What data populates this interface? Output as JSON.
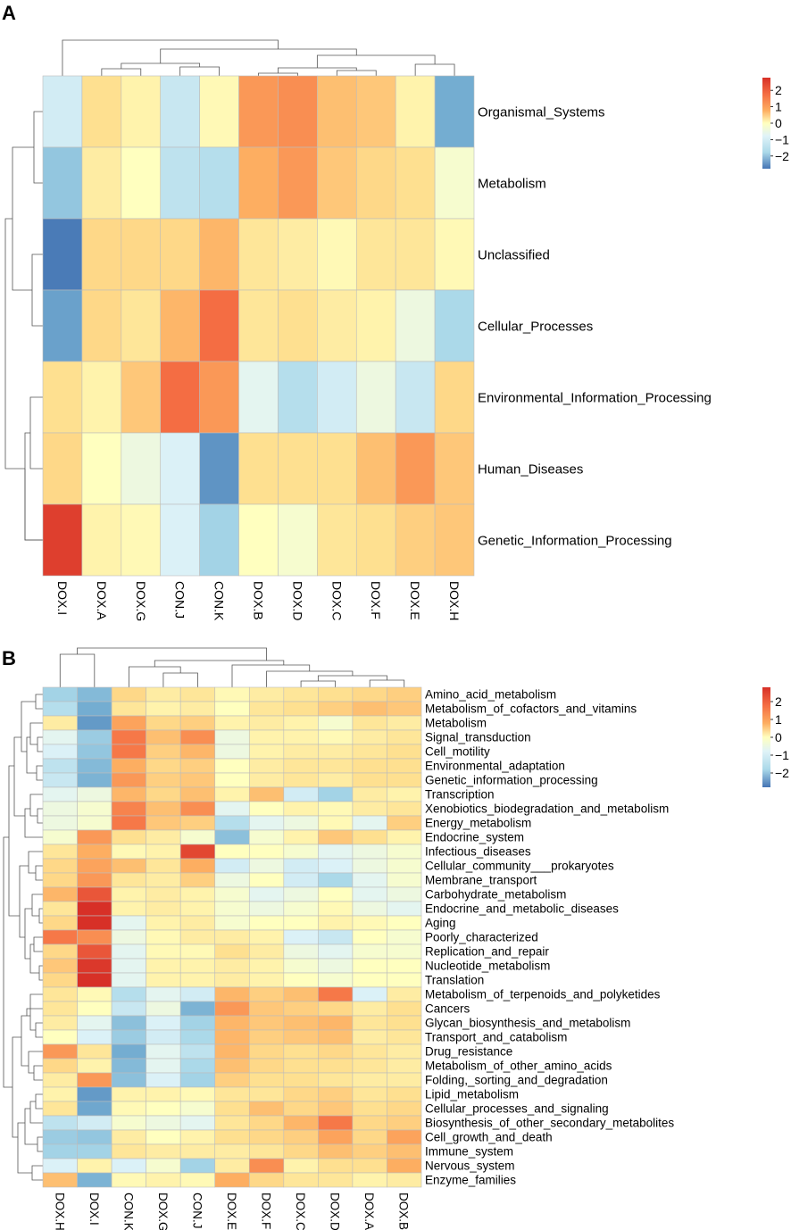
{
  "chart_data": [
    {
      "type": "heatmap",
      "panel": "A",
      "rows": [
        "Organismal_Systems",
        "Metabolism",
        "Unclassified",
        "Cellular_Processes",
        "Environmental_Information_Processing",
        "Human_Diseases",
        "Genetic_Information_Processing"
      ],
      "columns": [
        "DOX.I",
        "DOX.A",
        "DOX.G",
        "CON.J",
        "CON.K",
        "DOX.B",
        "DOX.D",
        "DOX.C",
        "DOX.F",
        "DOX.E",
        "DOX.H"
      ],
      "values": [
        [
          -0.5,
          0.5,
          0.2,
          -0.6,
          0.1,
          1.3,
          1.4,
          0.9,
          0.8,
          0.2,
          -1.6
        ],
        [
          -1.2,
          0.3,
          0.0,
          -0.7,
          -0.8,
          1.1,
          1.3,
          0.8,
          0.6,
          0.5,
          -0.1
        ],
        [
          -2.4,
          0.6,
          0.6,
          0.6,
          1.0,
          0.4,
          0.3,
          0.1,
          0.4,
          0.4,
          0.1
        ],
        [
          -1.8,
          0.6,
          0.4,
          1.0,
          1.7,
          0.4,
          0.5,
          0.3,
          0.2,
          -0.2,
          -0.9
        ],
        [
          0.5,
          0.2,
          0.8,
          1.7,
          1.3,
          -0.3,
          -0.8,
          -0.5,
          -0.2,
          -0.6,
          0.6
        ],
        [
          0.6,
          0.0,
          -0.2,
          -0.4,
          -2.0,
          0.5,
          0.5,
          0.5,
          0.9,
          1.3,
          0.8
        ],
        [
          2.3,
          0.2,
          0.1,
          -0.4,
          -1.0,
          0.0,
          -0.1,
          0.4,
          0.5,
          0.7,
          0.8
        ]
      ],
      "legend": {
        "ticks": [
          2,
          1,
          0,
          -1,
          -2
        ],
        "tick_labels": [
          "2",
          "1",
          "0",
          "−1",
          "−2"
        ]
      }
    },
    {
      "type": "heatmap",
      "panel": "B",
      "rows": [
        "Amino_acid_metabolism",
        "Metabolism_of_cofactors_and_vitamins",
        "Metabolism",
        "Signal_transduction",
        "Cell_motility",
        "Environmental_adaptation",
        "Genetic_information_processing",
        "Transcription",
        "Xenobiotics_biodegradation_and_metabolism",
        "Energy_metabolism",
        "Endocrine_system",
        "Infectious_diseases",
        "Cellular_community___prokaryotes",
        "Membrane_transport",
        "Carbohydrate_metabolism",
        "Endocrine_and_metabolic_diseases",
        "Aging",
        "Poorly_characterized",
        "Replication_and_repair",
        "Nucleotide_metabolism",
        "Translation",
        "Metabolism_of_terpenoids_and_polyketides",
        "Cancers",
        "Glycan_biosynthesis_and_metabolism",
        "Transport_and_catabolism",
        "Drug_resistance",
        "Metabolism_of_other_amino_acids",
        "Folding,_sorting_and_degradation",
        "Lipid_metabolism",
        "Cellular_processes_and_signaling",
        "Biosynthesis_of_other_secondary_metabolites",
        "Cell_growth_and_death",
        "Immune_system",
        "Nervous_system",
        "Enzyme_families"
      ],
      "columns": [
        "DOX.H",
        "DOX.I",
        "CON.K",
        "DOX.G",
        "CON.J",
        "DOX.E",
        "DOX.F",
        "DOX.C",
        "DOX.D",
        "DOX.A",
        "DOX.B"
      ],
      "values": [
        [
          -1.0,
          -1.4,
          0.6,
          0.3,
          0.4,
          0.1,
          0.3,
          0.4,
          0.5,
          0.6,
          0.7
        ],
        [
          -0.8,
          -1.6,
          0.4,
          0.2,
          0.3,
          0.0,
          0.4,
          0.5,
          0.7,
          0.9,
          0.8
        ],
        [
          0.3,
          -1.9,
          1.2,
          0.6,
          0.7,
          0.2,
          0.3,
          0.2,
          -0.1,
          0.4,
          0.3
        ],
        [
          -0.3,
          -1.1,
          1.6,
          0.9,
          1.4,
          -0.2,
          0.2,
          0.2,
          0.1,
          0.3,
          0.4
        ],
        [
          -0.4,
          -1.2,
          1.6,
          0.7,
          1.0,
          -0.2,
          0.2,
          0.3,
          0.3,
          0.4,
          0.5
        ],
        [
          -0.7,
          -1.4,
          1.1,
          0.6,
          0.7,
          0.0,
          0.3,
          0.4,
          0.4,
          0.5,
          0.5
        ],
        [
          -0.6,
          -1.5,
          1.3,
          0.7,
          0.8,
          0.0,
          0.3,
          0.4,
          0.3,
          0.5,
          0.5
        ],
        [
          -0.3,
          -0.2,
          1.0,
          0.6,
          0.9,
          0.2,
          0.9,
          -0.5,
          -1.0,
          0.3,
          0.2
        ],
        [
          -0.2,
          -0.1,
          1.5,
          0.9,
          1.4,
          -0.3,
          0.0,
          0.2,
          0.1,
          0.3,
          0.4
        ],
        [
          -0.2,
          -0.1,
          1.6,
          0.8,
          0.7,
          -0.8,
          -0.3,
          -0.2,
          0.1,
          -0.3,
          0.7
        ],
        [
          -0.1,
          1.3,
          0.5,
          0.3,
          -0.1,
          -1.3,
          -0.1,
          0.2,
          0.8,
          0.5,
          0.2
        ],
        [
          0.4,
          1.1,
          0.1,
          0.2,
          2.2,
          0.0,
          0.0,
          -0.1,
          -0.3,
          -0.2,
          -0.1
        ],
        [
          0.6,
          1.2,
          0.9,
          0.4,
          1.1,
          -0.5,
          -0.2,
          -0.5,
          -0.4,
          -0.2,
          -0.1
        ],
        [
          0.6,
          1.3,
          0.4,
          0.3,
          0.7,
          -0.2,
          0.0,
          -0.5,
          -0.9,
          -0.3,
          -0.1
        ],
        [
          1.0,
          2.0,
          0.2,
          0.3,
          0.2,
          -0.1,
          -0.3,
          -0.2,
          0.0,
          -0.3,
          -0.2
        ],
        [
          0.4,
          2.5,
          0.2,
          0.3,
          0.2,
          -0.1,
          -0.2,
          -0.1,
          0.1,
          -0.2,
          -0.3
        ],
        [
          0.6,
          2.5,
          -0.3,
          0.2,
          0.3,
          -0.1,
          0.0,
          0.0,
          0.2,
          0.1,
          0.0
        ],
        [
          1.6,
          1.4,
          -0.2,
          0.1,
          0.3,
          0.3,
          0.2,
          -0.4,
          -0.6,
          0.0,
          -0.1
        ],
        [
          0.6,
          2.0,
          -0.3,
          0.1,
          0.1,
          0.5,
          0.3,
          -0.2,
          -0.3,
          -0.1,
          -0.1
        ],
        [
          0.8,
          2.4,
          -0.3,
          0.2,
          0.2,
          0.3,
          0.2,
          -0.1,
          -0.2,
          0.0,
          0.0
        ],
        [
          0.6,
          2.5,
          -0.3,
          0.2,
          0.2,
          0.3,
          0.2,
          0.0,
          -0.1,
          0.0,
          0.0
        ],
        [
          0.4,
          0.1,
          -0.8,
          -0.3,
          -0.5,
          1.0,
          0.7,
          0.9,
          1.6,
          -0.4,
          0.3
        ],
        [
          0.4,
          0.0,
          -0.6,
          -0.2,
          -1.5,
          1.3,
          0.8,
          0.7,
          0.6,
          0.3,
          0.5
        ],
        [
          0.3,
          -0.3,
          -1.3,
          -0.4,
          -1.0,
          1.0,
          0.8,
          0.9,
          1.0,
          0.4,
          0.5
        ],
        [
          0.0,
          -0.4,
          -1.1,
          -0.5,
          -0.9,
          1.0,
          0.7,
          0.8,
          0.9,
          0.3,
          0.4
        ],
        [
          1.3,
          0.4,
          -1.6,
          -0.3,
          -0.7,
          1.0,
          0.6,
          0.5,
          0.6,
          0.4,
          0.3
        ],
        [
          0.6,
          0.2,
          -1.4,
          -0.3,
          -0.9,
          0.9,
          0.6,
          0.5,
          0.5,
          0.4,
          0.3
        ],
        [
          0.3,
          1.3,
          -1.3,
          -0.4,
          -1.0,
          0.7,
          0.5,
          0.5,
          0.4,
          0.3,
          0.3
        ],
        [
          0.2,
          -1.9,
          0.2,
          0.2,
          0.1,
          0.4,
          0.4,
          0.6,
          0.7,
          0.4,
          0.5
        ],
        [
          0.4,
          -1.7,
          0.1,
          0.0,
          -0.1,
          0.5,
          0.9,
          0.6,
          0.8,
          0.5,
          0.6
        ],
        [
          -0.7,
          -0.5,
          -0.1,
          -0.2,
          -0.3,
          0.4,
          0.6,
          1.0,
          1.6,
          0.6,
          0.7
        ],
        [
          -1.1,
          -1.2,
          0.3,
          0.0,
          0.2,
          0.5,
          0.6,
          0.7,
          1.2,
          0.6,
          1.2
        ],
        [
          -1.0,
          -1.0,
          0.4,
          0.3,
          0.3,
          0.3,
          0.4,
          0.6,
          0.9,
          0.7,
          0.9
        ],
        [
          -0.4,
          0.2,
          -0.4,
          -0.1,
          -1.0,
          0.3,
          1.4,
          0.2,
          0.5,
          0.5,
          1.1
        ],
        [
          0.9,
          -1.5,
          0.1,
          0.2,
          0.1,
          1.1,
          0.6,
          0.4,
          0.4,
          0.2,
          0.3
        ]
      ],
      "legend": {
        "ticks": [
          2,
          1,
          0,
          -1,
          -2
        ],
        "tick_labels": [
          "2",
          "1",
          "0",
          "−1",
          "−2"
        ]
      }
    }
  ],
  "panel_labels": {
    "a": "A",
    "b": "B"
  }
}
